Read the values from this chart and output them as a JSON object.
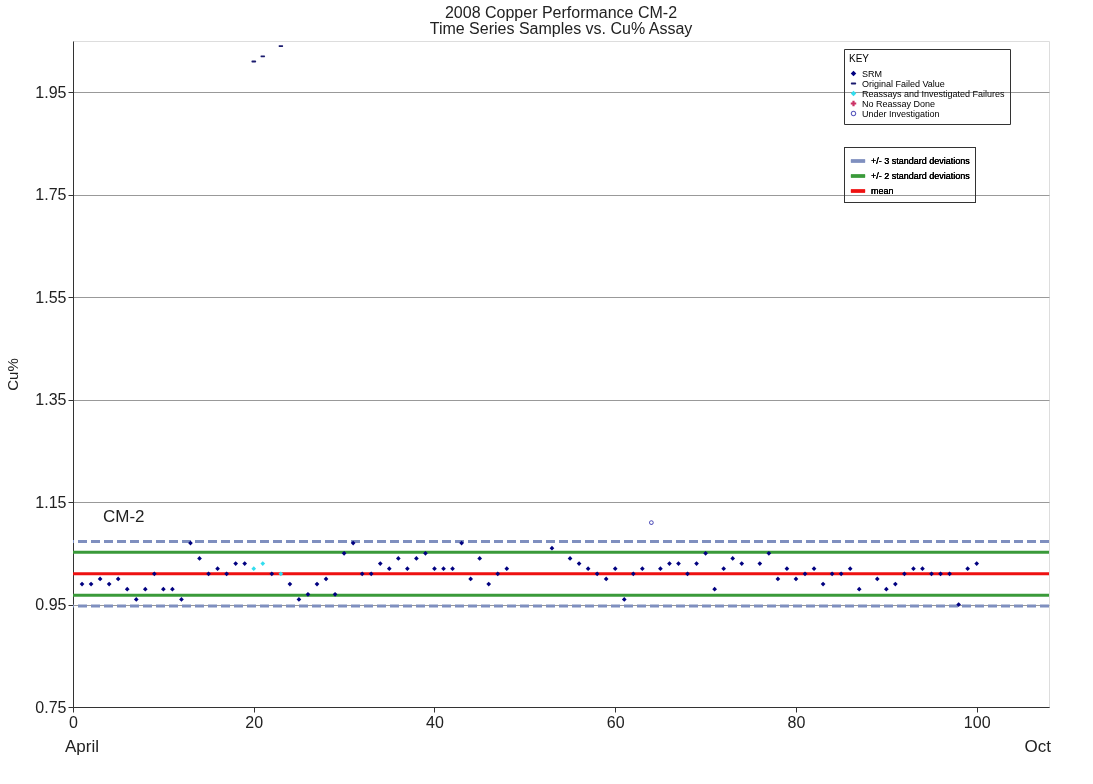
{
  "chart_data": {
    "type": "scatter",
    "title": "2008 Copper Performance CM-2",
    "subtitle": "Time Series Samples vs. Cu% Assay",
    "ylabel": "Cu%",
    "annotations": [
      "CM-2",
      "April",
      "Oct"
    ],
    "legend_title": "KEY",
    "legend": "top right",
    "grid": "y",
    "xlim": [
      0,
      108
    ],
    "xticks": [
      0,
      20,
      40,
      60,
      80,
      100
    ],
    "ylim": [
      0.75,
      2.05
    ],
    "yticks": [
      0.75,
      0.95,
      1.15,
      1.35,
      1.55,
      1.75,
      1.95
    ],
    "series": [
      {
        "name": "SRM",
        "color": "#000080",
        "marker": "diamond",
        "x": [
          1,
          2,
          3,
          4,
          5,
          6,
          7,
          8,
          9,
          10,
          11,
          12,
          13,
          14,
          15,
          16,
          17,
          18,
          19,
          22,
          24,
          25,
          26,
          27,
          28,
          29,
          30,
          31,
          32,
          33,
          34,
          35,
          36,
          37,
          38,
          39,
          40,
          41,
          42,
          43,
          44,
          45,
          46,
          47,
          48,
          53,
          55,
          56,
          57,
          58,
          59,
          60,
          61,
          62,
          63,
          65,
          66,
          67,
          68,
          69,
          70,
          71,
          72,
          73,
          74,
          76,
          77,
          78,
          79,
          80,
          81,
          82,
          83,
          84,
          85,
          86,
          87,
          89,
          90,
          91,
          92,
          93,
          94,
          95,
          96,
          97,
          98,
          99,
          100
        ],
        "values": [
          0.99,
          0.99,
          1.0,
          0.99,
          1.0,
          0.98,
          0.96,
          0.98,
          1.01,
          0.98,
          0.98,
          0.96,
          1.07,
          1.04,
          1.01,
          1.02,
          1.01,
          1.03,
          1.03,
          1.01,
          0.99,
          0.96,
          0.97,
          0.99,
          1.0,
          0.97,
          1.05,
          1.07,
          1.01,
          1.01,
          1.03,
          1.02,
          1.04,
          1.02,
          1.04,
          1.05,
          1.02,
          1.02,
          1.02,
          1.07,
          1.0,
          1.04,
          0.99,
          1.01,
          1.02,
          1.06,
          1.04,
          1.03,
          1.02,
          1.01,
          1.0,
          1.02,
          0.96,
          1.01,
          1.02,
          1.02,
          1.03,
          1.03,
          1.01,
          1.03,
          1.05,
          0.98,
          1.02,
          1.04,
          1.03,
          1.03,
          1.05,
          1.0,
          1.02,
          1.0,
          1.01,
          1.02,
          0.99,
          1.01,
          1.01,
          1.02,
          0.98,
          1.0,
          0.98,
          0.99,
          1.01,
          1.02,
          1.02,
          1.01,
          1.01,
          1.01,
          0.95,
          1.02,
          1.03
        ]
      },
      {
        "name": "Original Failed Value",
        "color": "#1a1a6e",
        "x": [
          20,
          21,
          23
        ],
        "values": [
          2.01,
          2.02,
          2.04
        ]
      },
      {
        "name": "Reassays and Investigated Failures",
        "color": "#33ddee",
        "marker": "diamond",
        "x": [
          20,
          21,
          23
        ],
        "values": [
          1.02,
          1.03,
          1.01
        ]
      },
      {
        "name": "No Reassay Done",
        "color": "#cc3366",
        "marker": "cross"
      },
      {
        "name": "Under Investigation",
        "color": "#5555bb",
        "marker": "circle",
        "x": [
          64
        ],
        "values": [
          1.11
        ]
      }
    ],
    "ref_lines": [
      {
        "axis": "y",
        "value": 1.073,
        "label": "+/- 3 standard deviations",
        "color": "#7f8fbf",
        "line_style": "dashed"
      },
      {
        "axis": "y",
        "value": 0.947,
        "color": "#7f8fbf",
        "line_style": "dashed"
      },
      {
        "axis": "y",
        "value": 1.052,
        "label": "+/- 2 standard deviations",
        "color": "#3a9a3a",
        "line_style": "solid"
      },
      {
        "axis": "y",
        "value": 0.968,
        "color": "#3a9a3a",
        "line_style": "solid"
      },
      {
        "axis": "y",
        "value": 1.01,
        "label": "mean",
        "color": "#ee1111",
        "line_style": "solid"
      }
    ]
  }
}
